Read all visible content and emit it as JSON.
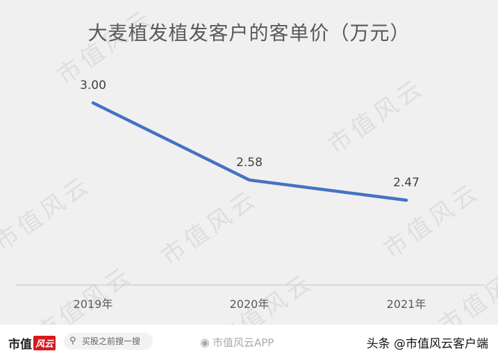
{
  "chart_data": {
    "type": "line",
    "title": "大麦植发植发客户的客单价（万元）",
    "categories": [
      "2019年",
      "2020年",
      "2021年"
    ],
    "series": [
      {
        "values": [
          3.0,
          2.58,
          2.47
        ],
        "labels": [
          "3.00",
          "2.58",
          "2.47"
        ]
      }
    ],
    "ylim": [
      1.5,
      3.3
    ],
    "grid": false,
    "legend": "none",
    "line_color": "#4472c4"
  },
  "watermarks": [
    "市值风云",
    "市值风云",
    "市值风云",
    "市值风云",
    "市值风云",
    "市值风云",
    "市值风云",
    "市值风云"
  ],
  "footer": {
    "brand": "市值",
    "brand_badge": "风云",
    "search_placeholder": "买股之前搜一搜",
    "search_icon": "search-icon",
    "weibo_text": "市值风云APP",
    "attribution": "头条 @市值风云客户端"
  }
}
